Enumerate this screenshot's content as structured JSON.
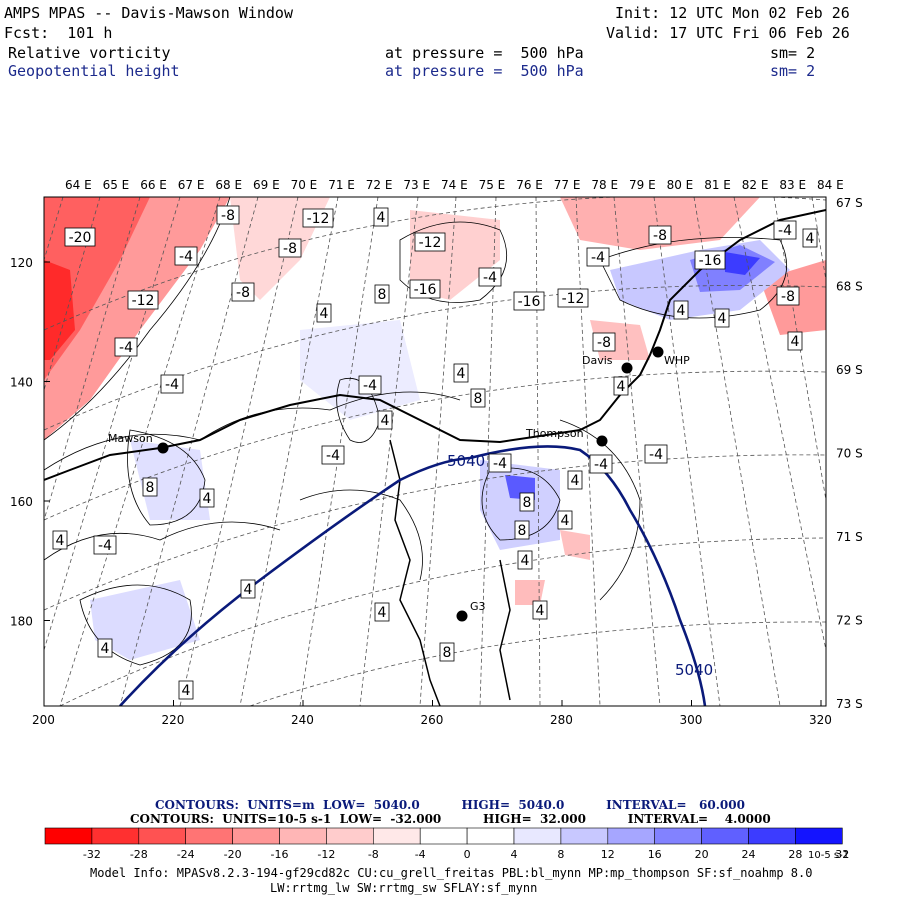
{
  "header": {
    "title": "AMPS MPAS -- Davis-Mawson Window",
    "init": "Init: 12 UTC Mon 02 Feb 26",
    "fcst": "Fcst:  101 h",
    "valid": "Valid: 17 UTC Fri 06 Feb 26",
    "field1": {
      "name": "Relative vorticity",
      "level": "at pressure =  500 hPa",
      "sm": "sm= 2"
    },
    "field2": {
      "name": "Geopotential height",
      "level": "at pressure =  500 hPa",
      "sm": "sm= 2"
    }
  },
  "map": {
    "top_lon_labels": [
      "64 E",
      "65 E",
      "66 E",
      "67 E",
      "68 E",
      "69 E",
      "70 E",
      "71 E",
      "72 E",
      "73 E",
      "74 E",
      "75 E",
      "76 E",
      "77 E",
      "78 E",
      "79 E",
      "80 E",
      "81 E",
      "82 E",
      "83 E",
      "84 E"
    ],
    "right_lat_labels": [
      "67 S",
      "68 S",
      "69 S",
      "70 S",
      "71 S",
      "72 S",
      "73 S"
    ],
    "x_ticks": [
      "200",
      "220",
      "240",
      "260",
      "280",
      "300",
      "320"
    ],
    "y_ticks": [
      "120",
      "140",
      "160",
      "180"
    ],
    "stations": [
      {
        "name": "Mawson"
      },
      {
        "name": "Davis"
      },
      {
        "name": "WHP"
      },
      {
        "name": "Thompson"
      },
      {
        "name": "G3"
      }
    ],
    "height_contour_label": "5040",
    "vort_labels": [
      "-20",
      "-8",
      "-12",
      "-8",
      "4",
      "-12",
      "-4",
      "-8",
      "-16",
      "-12",
      "-4",
      "-16",
      "-4",
      "4",
      "8",
      "-8",
      "-4",
      "-4",
      "4",
      "-16",
      "-8",
      "-4",
      "-4",
      "4",
      "4",
      "-8",
      "8",
      "-12",
      "4",
      "4",
      "-4",
      "-4",
      "-4",
      "8",
      "4",
      "4",
      "4",
      "4",
      "8",
      "4",
      "4",
      "-4",
      "-4",
      "8",
      "4",
      "4",
      "4",
      "4",
      "4",
      "8",
      "4"
    ]
  },
  "footer": {
    "contours1": "CONTOURS:  UNITS=m  LOW=  5040.0          HIGH=  5040.0          INTERVAL=   60.000",
    "contours2": "CONTOURS:  UNITS=10-5 s-1  LOW=  -32.000          HIGH=  32.000          INTERVAL=    4.0000",
    "colorbar_labels": [
      "-32",
      "-28",
      "-24",
      "-20",
      "-16",
      "-12",
      "-8",
      "-4",
      "0",
      "4",
      "8",
      "12",
      "16",
      "20",
      "24",
      "28",
      "32"
    ],
    "colorbar_units": "10-5 s-1",
    "colorbar_colors": [
      "#ff0000",
      "#ff3030",
      "#ff5252",
      "#ff7474",
      "#ff9696",
      "#ffb6b6",
      "#ffcccc",
      "#ffe8e8",
      "#ffffff",
      "#ffffff",
      "#e8e8ff",
      "#c8c8ff",
      "#a6a6ff",
      "#8282ff",
      "#6060ff",
      "#3c3cff",
      "#1414ff"
    ],
    "model_line1": "Model Info: MPASv8.2.3-194-gf29cd82c CU:cu_grell_freitas PBL:bl_mynn MP:mp_thompson SF:sf_noahmp 8.0",
    "model_line2": "LW:rrtmg_lw SW:rrtmg_sw SFLAY:sf_mynn"
  }
}
